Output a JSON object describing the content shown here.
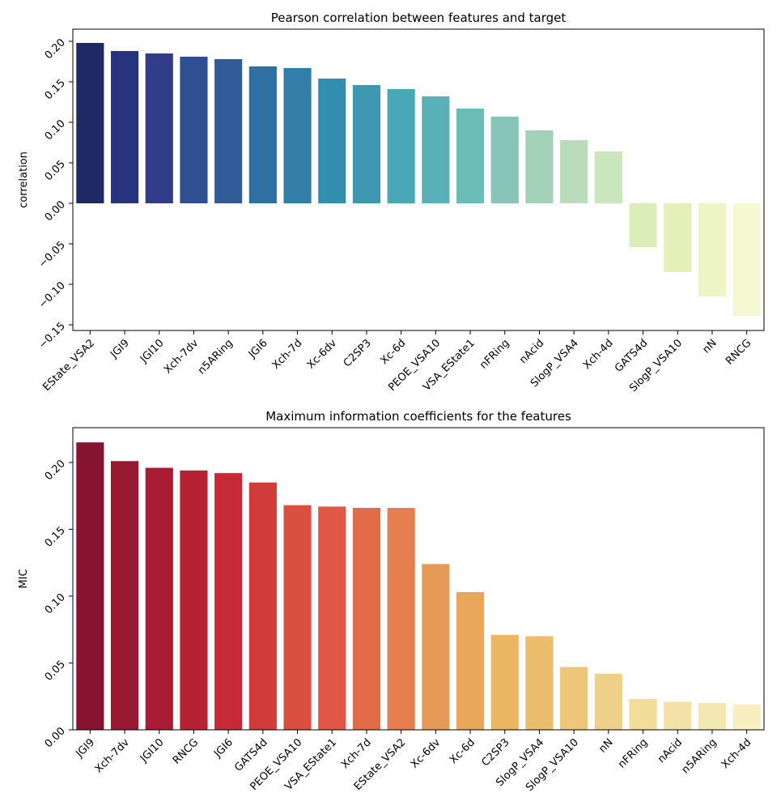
{
  "charts": [
    {
      "type": "bar",
      "title": "Pearson correlation between features and target",
      "xlabel": "",
      "ylabel": "correlation",
      "ylim": [
        -0.157,
        0.215
      ],
      "yticks": [
        -0.15,
        -0.1,
        -0.05,
        0.0,
        0.05,
        0.1,
        0.15,
        0.2
      ],
      "ytick_labels": [
        "−0.15",
        "−0.10",
        "−0.05",
        "0.00",
        "0.05",
        "0.10",
        "0.15",
        "0.20"
      ],
      "categories": [
        "EState_VSA2",
        "JGI9",
        "JGI10",
        "Xch-7dv",
        "n5ARing",
        "JGI6",
        "Xch-7d",
        "Xc-6dv",
        "C2SP3",
        "Xc-6d",
        "PEOE_VSA10",
        "VSA_EState1",
        "nFRing",
        "nAcid",
        "SlogP_VSA4",
        "Xch-4d",
        "GATS4d",
        "SlogP_VSA10",
        "nN",
        "RNCG"
      ],
      "values": [
        0.198,
        0.188,
        0.185,
        0.181,
        0.178,
        0.169,
        0.167,
        0.154,
        0.146,
        0.141,
        0.132,
        0.117,
        0.107,
        0.09,
        0.078,
        0.064,
        -0.054,
        -0.085,
        -0.115,
        -0.139
      ],
      "colors": [
        "#1d2a63",
        "#27337c",
        "#323d8a",
        "#2f4f94",
        "#315b97",
        "#306fa1",
        "#327ea8",
        "#338fb0",
        "#3f98b3",
        "#4aa7b8",
        "#5ab0b7",
        "#6bbcb6",
        "#87c4b7",
        "#a3d2b8",
        "#b9dcbb",
        "#cae6bc",
        "#dbedb8",
        "#e5f0b8",
        "#eef5c4",
        "#f5f9d2"
      ],
      "grid": false,
      "legend": "none"
    },
    {
      "type": "bar",
      "title": "Maximum information coefficients for the features",
      "xlabel": "",
      "ylabel": "MIC",
      "ylim": [
        0,
        0.226
      ],
      "yticks": [
        0.0,
        0.05,
        0.1,
        0.15,
        0.2
      ],
      "ytick_labels": [
        "0.00",
        "0.05",
        "0.10",
        "0.15",
        "0.20"
      ],
      "categories": [
        "JGI9",
        "Xch-7dv",
        "JGI10",
        "RNCG",
        "JGI6",
        "GATS4d",
        "PEOE_VSA10",
        "VSA_EState1",
        "Xch-7d",
        "EState_VSA2",
        "Xc-6dv",
        "Xc-6d",
        "C2SP3",
        "SlogP_VSA4",
        "SlogP_VSA10",
        "nN",
        "nFRing",
        "nAcid",
        "n5ARing",
        "Xch-4d"
      ],
      "values": [
        0.215,
        0.201,
        0.196,
        0.194,
        0.192,
        0.185,
        0.168,
        0.167,
        0.166,
        0.166,
        0.124,
        0.103,
        0.071,
        0.07,
        0.047,
        0.042,
        0.023,
        0.021,
        0.02,
        0.019
      ],
      "colors": [
        "#861330",
        "#981a31",
        "#a81d33",
        "#b62134",
        "#c52a36",
        "#d13b3a",
        "#d95040",
        "#e05845",
        "#e26b48",
        "#e57f50",
        "#e59a58",
        "#e8a75b",
        "#ebb562",
        "#ebbc6b",
        "#edc67a",
        "#efd088",
        "#f1dc98",
        "#f2e2a7",
        "#f4e8b2",
        "#f7efc0"
      ],
      "grid": false,
      "legend": "none"
    }
  ]
}
